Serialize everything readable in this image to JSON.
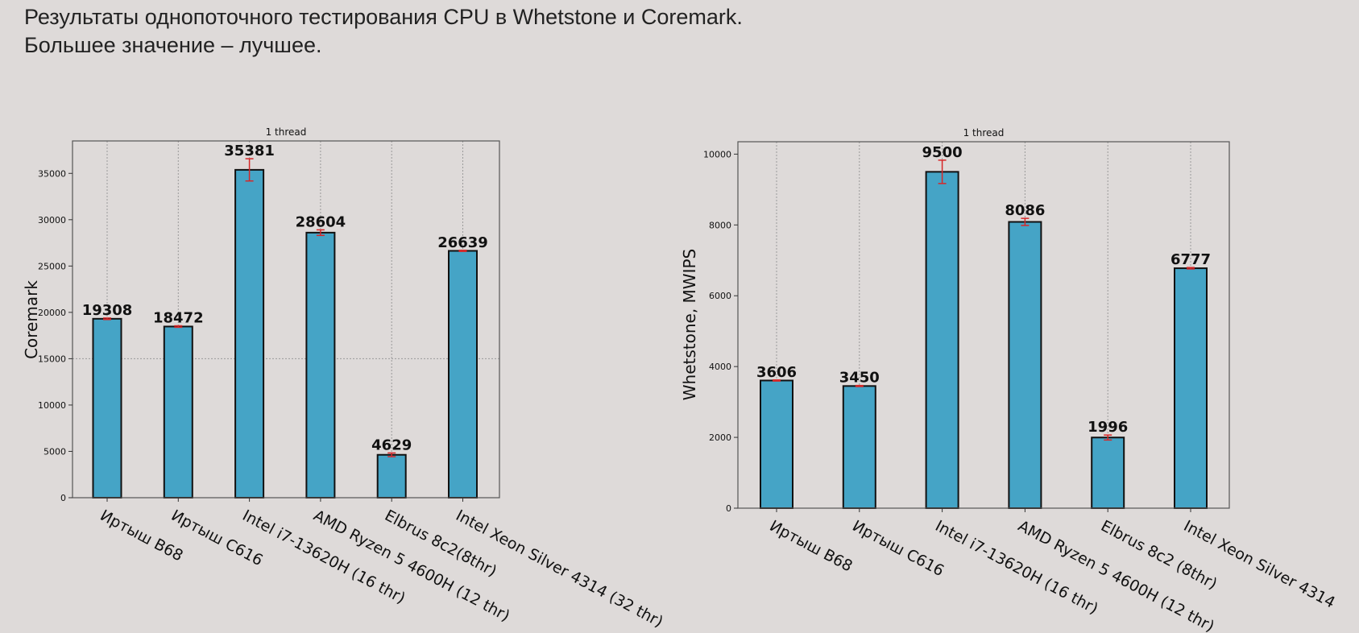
{
  "heading": {
    "line1": "Результаты однопоточного тестирования CPU в Whetstone и Coremark.",
    "line2": "Большее значение – лучшее."
  },
  "colors": {
    "bar_fill": "#45a4c6",
    "bar_edge": "#111111",
    "error_bar": "#d62728",
    "grid": "#9a9a9a",
    "background": "#dedad9"
  },
  "chart_data": [
    {
      "type": "bar",
      "title": "1 thread",
      "ylabel": "Coremark",
      "categories": [
        "Иртыш В68",
        "Иртыш С616",
        "Intel i7-13620H (16 thr)",
        "AMD Ryzen 5 4600H (12 thr)",
        "Elbrus 8c2(8thr)",
        "Intel Xeon Silver 4314 (32 thr)"
      ],
      "values": [
        19308,
        18472,
        35381,
        28604,
        4629,
        26639
      ],
      "value_labels": [
        "19308",
        "18472",
        "35381",
        "28604",
        "4629",
        "26639"
      ],
      "errors": [
        80,
        80,
        1200,
        300,
        200,
        60
      ],
      "ylim": [
        0,
        38500
      ],
      "yticks": [
        0,
        5000,
        10000,
        15000,
        20000,
        25000,
        30000,
        35000
      ],
      "ytick_labels": [
        "0",
        "5000",
        "10000",
        "15000",
        "20000",
        "25000",
        "30000",
        "35000"
      ],
      "grid": true
    },
    {
      "type": "bar",
      "title": "1 thread",
      "ylabel": "Whetstone, MWIPS",
      "categories": [
        "Иртыш В68",
        "Иртыш С616",
        "Intel i7-13620H (16 thr)",
        "AMD Ryzen 5 4600H (12 thr)",
        "Elbrus 8c2 (8thr)",
        "Intel Xeon Silver 4314"
      ],
      "values": [
        3606,
        3450,
        9500,
        8086,
        1996,
        6777
      ],
      "value_labels": [
        "3606",
        "3450",
        "9500",
        "8086",
        "1996",
        "6777"
      ],
      "errors": [
        15,
        15,
        330,
        100,
        70,
        20
      ],
      "ylim": [
        0,
        10350
      ],
      "yticks": [
        0,
        2000,
        4000,
        6000,
        8000,
        10000
      ],
      "ytick_labels": [
        "0",
        "2000",
        "4000",
        "6000",
        "8000",
        "10000"
      ],
      "grid": true
    }
  ]
}
